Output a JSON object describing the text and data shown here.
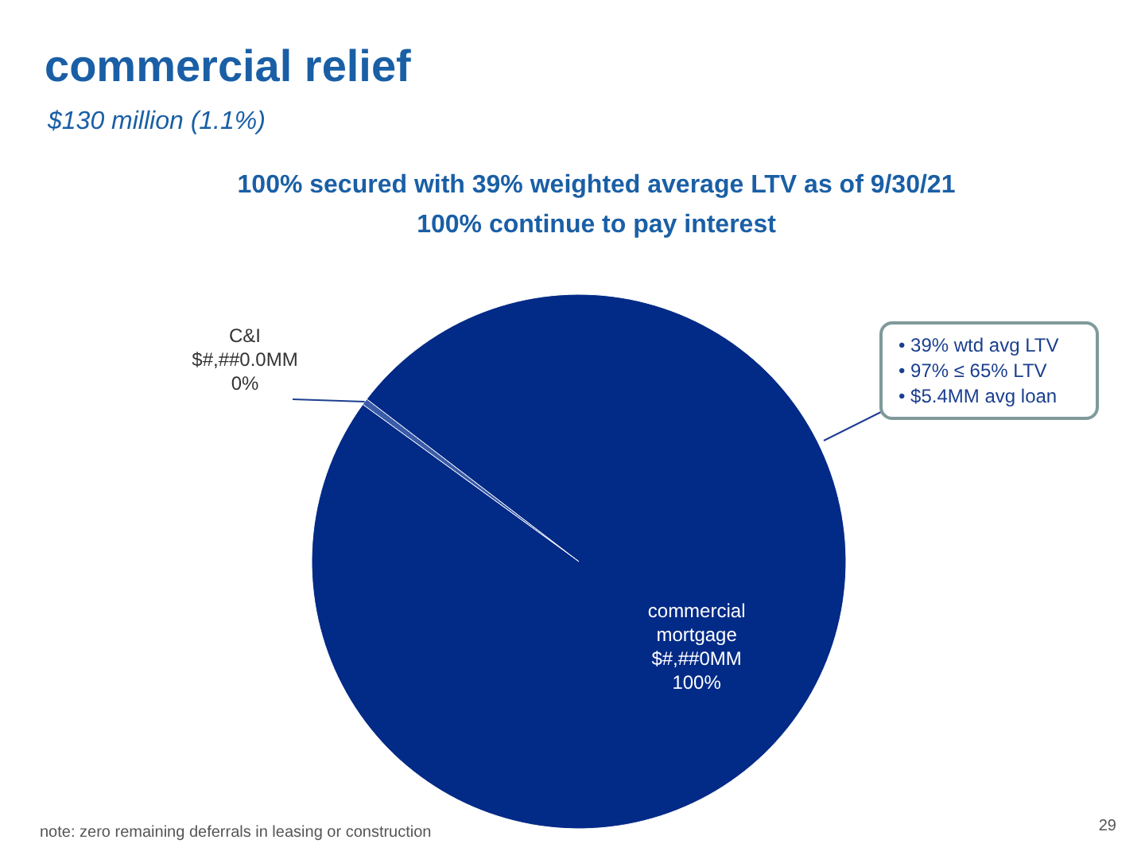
{
  "chart_data": {
    "type": "pie",
    "title": "commercial relief",
    "subtitle": "$130 million (1.1%)",
    "categories": [
      "C&I",
      "commercial mortgage"
    ],
    "values": [
      0.4,
      99.6
    ],
    "colors": [
      "#3a5ca8",
      "#022a87"
    ],
    "value_labels": [
      "$#,##0.0MM\n0%",
      "$#,##0MM\n100%"
    ],
    "legend": false,
    "annotations": [
      "100% secured with 39% weighted average LTV as of 9/30/21",
      "100% continue to pay interest",
      "• 39% wtd avg LTV",
      "• 97% ≤ 65% LTV",
      "• $5.4MM avg loan",
      "note: zero remaining deferrals in leasing or construction",
      "29"
    ]
  }
}
